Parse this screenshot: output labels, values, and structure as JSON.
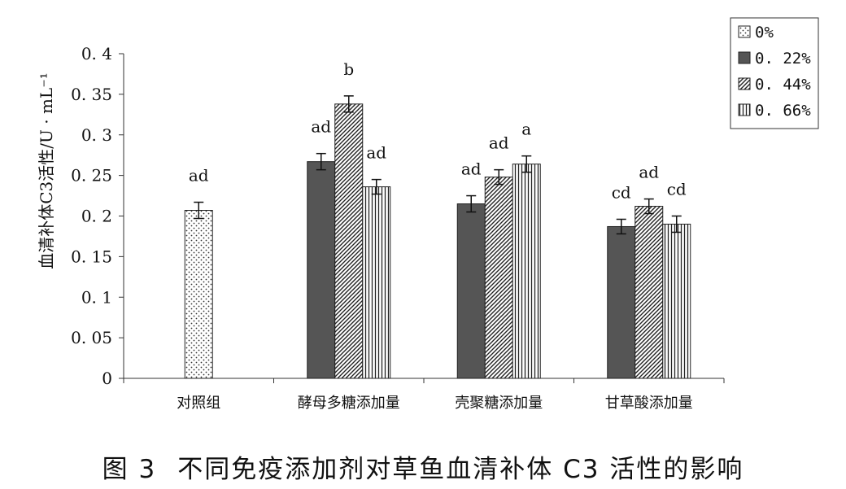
{
  "chart_data": {
    "type": "bar",
    "ylabel": "血清补体C3活性/U · mL⁻¹",
    "xlabel": "",
    "ylim": [
      0,
      0.4
    ],
    "ytick_labels": [
      "0",
      "0. 05",
      "0. 1",
      "0. 15",
      "0. 2",
      "0. 25",
      "0. 3",
      "0. 35",
      "0. 4"
    ],
    "categories": [
      "对照组",
      "酵母多糖添加量",
      "壳聚糖添加量",
      "甘草酸添加量"
    ],
    "series": [
      {
        "name": "0%",
        "pattern": "dots",
        "values": [
          0.207,
          null,
          null,
          null
        ],
        "errors": [
          0.01,
          null,
          null,
          null
        ],
        "labels": [
          "ad",
          null,
          null,
          null
        ]
      },
      {
        "name": "0. 22%",
        "pattern": "solid",
        "values": [
          null,
          0.267,
          0.215,
          0.187
        ],
        "errors": [
          null,
          0.01,
          0.01,
          0.009
        ],
        "labels": [
          null,
          "ad",
          "ad",
          "cd"
        ]
      },
      {
        "name": "0. 44%",
        "pattern": "diagonal",
        "values": [
          null,
          0.338,
          0.248,
          0.212
        ],
        "errors": [
          null,
          0.01,
          0.009,
          0.009
        ],
        "labels": [
          null,
          "b",
          "ad",
          "ad"
        ]
      },
      {
        "name": "0. 66%",
        "pattern": "vertical",
        "values": [
          null,
          0.236,
          0.264,
          0.19
        ],
        "errors": [
          null,
          0.009,
          0.01,
          0.01
        ],
        "labels": [
          null,
          "ad",
          "a",
          "cd"
        ]
      }
    ],
    "legend_position": "top-right",
    "grid": false,
    "colors": {
      "solid": "#555555",
      "axis": "#333333",
      "text": "#111111"
    }
  },
  "caption": {
    "figure_number": "图 3",
    "title": "不同免疫添加剂对草鱼血清补体 C3 活性的影响"
  }
}
